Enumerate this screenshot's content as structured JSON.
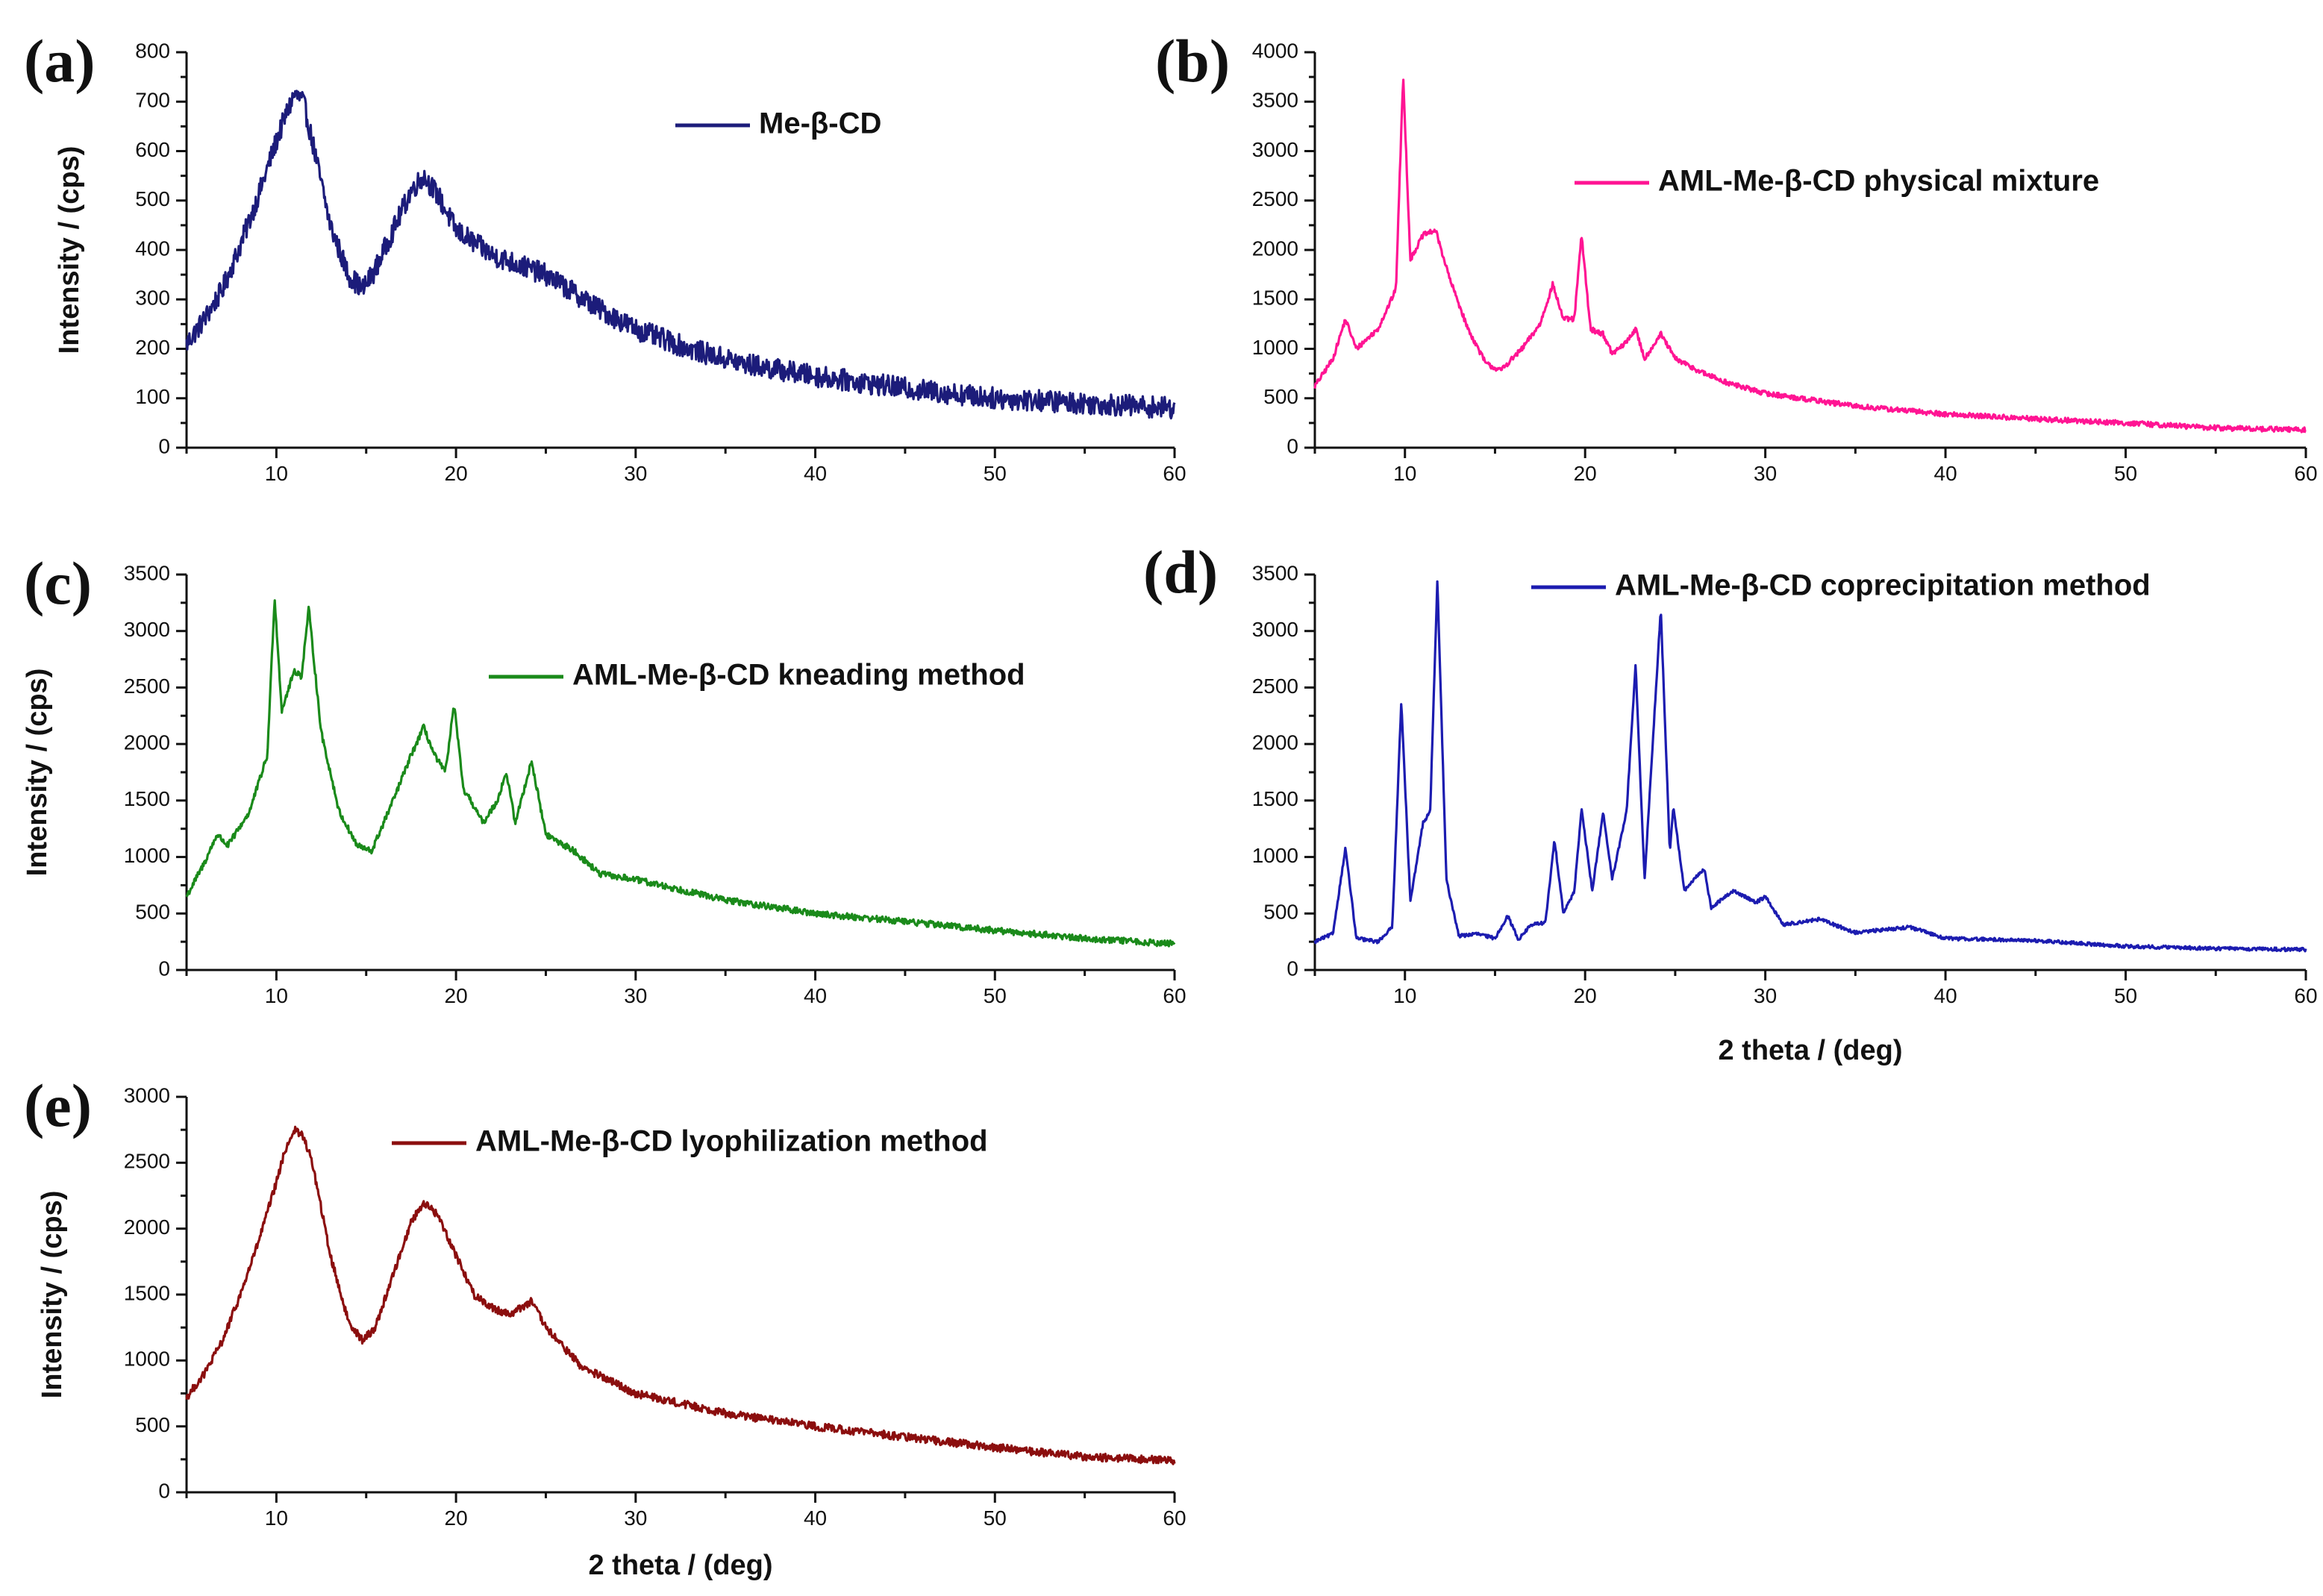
{
  "chart_data": [
    {
      "panel_label": "(a)",
      "type": "line",
      "series": [
        {
          "name": "Me-β-CD",
          "color": "#1c1c7a"
        }
      ],
      "points": [
        [
          5,
          210
        ],
        [
          6,
          260
        ],
        [
          7,
          320
        ],
        [
          8,
          410
        ],
        [
          9,
          510
        ],
        [
          10,
          620
        ],
        [
          10.5,
          670
        ],
        [
          11,
          715
        ],
        [
          11.5,
          700
        ],
        [
          12,
          620
        ],
        [
          13,
          450
        ],
        [
          14,
          350
        ],
        [
          14.8,
          320
        ],
        [
          15.5,
          360
        ],
        [
          16.5,
          440
        ],
        [
          17.5,
          520
        ],
        [
          18.2,
          550
        ],
        [
          19,
          510
        ],
        [
          20,
          440
        ],
        [
          22,
          390
        ],
        [
          25,
          350
        ],
        [
          28,
          280
        ],
        [
          30,
          240
        ],
        [
          33,
          200
        ],
        [
          36,
          170
        ],
        [
          40,
          145
        ],
        [
          45,
          120
        ],
        [
          50,
          100
        ],
        [
          55,
          90
        ],
        [
          60,
          80
        ]
      ],
      "noise": 22,
      "xlim": [
        5,
        60
      ],
      "ylim": [
        0,
        800
      ],
      "xticks": [
        10,
        20,
        30,
        40,
        50,
        60
      ],
      "yticks": [
        0,
        100,
        200,
        300,
        400,
        500,
        600,
        700,
        800
      ],
      "ylabel": "Intensity / (cps)",
      "xlabel": ""
    },
    {
      "panel_label": "(b)",
      "type": "line",
      "series": [
        {
          "name": "AML-Me-β-CD physical mixture",
          "color": "#ff1493"
        }
      ],
      "points": [
        [
          5,
          620
        ],
        [
          6,
          900
        ],
        [
          6.7,
          1300
        ],
        [
          7.3,
          1000
        ],
        [
          8.5,
          1200
        ],
        [
          9.5,
          1600
        ],
        [
          9.9,
          3760
        ],
        [
          10.3,
          1900
        ],
        [
          11,
          2150
        ],
        [
          11.7,
          2200
        ],
        [
          12.5,
          1700
        ],
        [
          13.5,
          1200
        ],
        [
          14.5,
          850
        ],
        [
          15.3,
          780
        ],
        [
          16.5,
          1000
        ],
        [
          17.5,
          1250
        ],
        [
          18.2,
          1650
        ],
        [
          18.8,
          1300
        ],
        [
          19.4,
          1300
        ],
        [
          19.8,
          2150
        ],
        [
          20.3,
          1200
        ],
        [
          21,
          1150
        ],
        [
          21.5,
          950
        ],
        [
          22.2,
          1050
        ],
        [
          22.8,
          1200
        ],
        [
          23.3,
          900
        ],
        [
          24.2,
          1150
        ],
        [
          25,
          900
        ],
        [
          26.6,
          750
        ],
        [
          28,
          650
        ],
        [
          30,
          550
        ],
        [
          35,
          420
        ],
        [
          40,
          340
        ],
        [
          45,
          290
        ],
        [
          50,
          250
        ],
        [
          55,
          200
        ],
        [
          60,
          180
        ]
      ],
      "noise": 26,
      "xlim": [
        5,
        60
      ],
      "ylim": [
        0,
        4000
      ],
      "xticks": [
        10,
        20,
        30,
        40,
        50,
        60
      ],
      "yticks": [
        0,
        500,
        1000,
        1500,
        2000,
        2500,
        3000,
        3500,
        4000
      ],
      "ylabel": "",
      "xlabel": ""
    },
    {
      "panel_label": "(c)",
      "type": "line",
      "series": [
        {
          "name": "AML-Me-β-CD kneading method",
          "color": "#1a8a1a"
        }
      ],
      "points": [
        [
          5,
          650
        ],
        [
          6,
          950
        ],
        [
          6.7,
          1200
        ],
        [
          7.3,
          1100
        ],
        [
          8.5,
          1400
        ],
        [
          9.5,
          1900
        ],
        [
          9.9,
          3300
        ],
        [
          10.3,
          2300
        ],
        [
          11,
          2650
        ],
        [
          11.4,
          2600
        ],
        [
          11.8,
          3200
        ],
        [
          12.5,
          2100
        ],
        [
          13.5,
          1400
        ],
        [
          14.5,
          1100
        ],
        [
          15.3,
          1050
        ],
        [
          16.5,
          1500
        ],
        [
          17.5,
          1900
        ],
        [
          18.2,
          2150
        ],
        [
          18.8,
          1900
        ],
        [
          19.4,
          1750
        ],
        [
          19.9,
          2350
        ],
        [
          20.4,
          1600
        ],
        [
          21,
          1450
        ],
        [
          21.5,
          1300
        ],
        [
          22.3,
          1500
        ],
        [
          22.8,
          1750
        ],
        [
          23.3,
          1300
        ],
        [
          24.2,
          1850
        ],
        [
          25,
          1200
        ],
        [
          26.6,
          1050
        ],
        [
          28,
          850
        ],
        [
          30,
          800
        ],
        [
          35,
          620
        ],
        [
          40,
          500
        ],
        [
          45,
          430
        ],
        [
          50,
          350
        ],
        [
          55,
          280
        ],
        [
          60,
          230
        ]
      ],
      "noise": 28,
      "xlim": [
        5,
        60
      ],
      "ylim": [
        0,
        3500
      ],
      "xticks": [
        10,
        20,
        30,
        40,
        50,
        60
      ],
      "yticks": [
        0,
        500,
        1000,
        1500,
        2000,
        2500,
        3000,
        3500
      ],
      "ylabel": "Intensity / (cps)",
      "xlabel": ""
    },
    {
      "panel_label": "(d)",
      "type": "line",
      "series": [
        {
          "name": "AML-Me-β-CD coprecipitation method",
          "color": "#1c1cb0"
        }
      ],
      "points": [
        [
          5,
          250
        ],
        [
          6,
          320
        ],
        [
          6.7,
          1080
        ],
        [
          7.3,
          280
        ],
        [
          8.5,
          250
        ],
        [
          9.3,
          380
        ],
        [
          9.8,
          2380
        ],
        [
          10.3,
          600
        ],
        [
          11,
          1300
        ],
        [
          11.4,
          1400
        ],
        [
          11.8,
          3450
        ],
        [
          12.3,
          800
        ],
        [
          13,
          300
        ],
        [
          14,
          320
        ],
        [
          15,
          280
        ],
        [
          15.7,
          480
        ],
        [
          16.3,
          270
        ],
        [
          17,
          400
        ],
        [
          17.8,
          420
        ],
        [
          18.3,
          1150
        ],
        [
          18.8,
          500
        ],
        [
          19.4,
          700
        ],
        [
          19.8,
          1420
        ],
        [
          20.4,
          700
        ],
        [
          21,
          1400
        ],
        [
          21.5,
          800
        ],
        [
          22.3,
          1400
        ],
        [
          22.8,
          2700
        ],
        [
          23.3,
          800
        ],
        [
          24.2,
          3200
        ],
        [
          24.7,
          1050
        ],
        [
          24.9,
          1450
        ],
        [
          25.5,
          700
        ],
        [
          26.6,
          900
        ],
        [
          27,
          550
        ],
        [
          28.2,
          700
        ],
        [
          29.5,
          600
        ],
        [
          30,
          650
        ],
        [
          31,
          400
        ],
        [
          33,
          450
        ],
        [
          35,
          330
        ],
        [
          38,
          380
        ],
        [
          40,
          280
        ],
        [
          45,
          260
        ],
        [
          50,
          210
        ],
        [
          55,
          190
        ],
        [
          60,
          180
        ]
      ],
      "noise": 15,
      "xlim": [
        5,
        60
      ],
      "ylim": [
        0,
        3500
      ],
      "xticks": [
        10,
        20,
        30,
        40,
        50,
        60
      ],
      "yticks": [
        0,
        500,
        1000,
        1500,
        2000,
        2500,
        3000,
        3500
      ],
      "ylabel": "",
      "xlabel": "2 theta / (deg)"
    },
    {
      "panel_label": "(e)",
      "type": "line",
      "series": [
        {
          "name": "AML-Me-β-CD lyophilization method",
          "color": "#8b0e0e"
        }
      ],
      "points": [
        [
          5,
          720
        ],
        [
          6,
          900
        ],
        [
          7,
          1150
        ],
        [
          8,
          1500
        ],
        [
          9,
          1900
        ],
        [
          10,
          2350
        ],
        [
          10.5,
          2600
        ],
        [
          11,
          2750
        ],
        [
          11.5,
          2700
        ],
        [
          12,
          2500
        ],
        [
          13,
          1800
        ],
        [
          14,
          1300
        ],
        [
          14.8,
          1150
        ],
        [
          15.5,
          1250
        ],
        [
          16.5,
          1650
        ],
        [
          17.5,
          2050
        ],
        [
          18.2,
          2200
        ],
        [
          19,
          2100
        ],
        [
          20,
          1800
        ],
        [
          21,
          1500
        ],
        [
          22,
          1400
        ],
        [
          23,
          1350
        ],
        [
          24.2,
          1450
        ],
        [
          25,
          1250
        ],
        [
          27,
          950
        ],
        [
          30,
          750
        ],
        [
          35,
          600
        ],
        [
          40,
          500
        ],
        [
          45,
          420
        ],
        [
          50,
          340
        ],
        [
          55,
          270
        ],
        [
          60,
          240
        ]
      ],
      "noise": 30,
      "xlim": [
        5,
        60
      ],
      "ylim": [
        0,
        3000
      ],
      "xticks": [
        10,
        20,
        30,
        40,
        50,
        60
      ],
      "yticks": [
        0,
        500,
        1000,
        1500,
        2000,
        2500,
        3000
      ],
      "ylabel": "Intensity / (cps)",
      "xlabel": "2 theta / (deg)"
    }
  ]
}
